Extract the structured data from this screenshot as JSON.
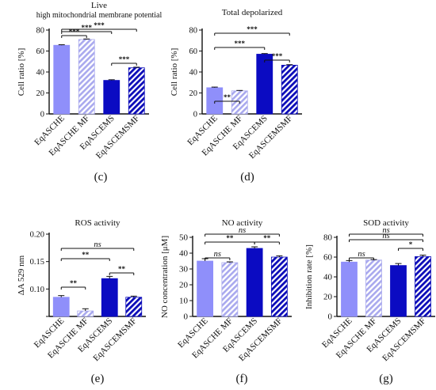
{
  "colors": {
    "light_fill": "#8f8ffa",
    "light_stripe": "#a9a9ee",
    "dark_fill": "#0b0bc2",
    "dark_stripe": "#0b0bb8",
    "axis": "#111111"
  },
  "chart_data": [
    {
      "panel": "(c)",
      "type": "bar",
      "title": "Live",
      "subtitle": "high mitochondrial membrane potential",
      "ylabel": "Cell ratio [%]",
      "ylim": [
        0,
        80
      ],
      "yticks": [
        0,
        20,
        40,
        60,
        80
      ],
      "ytick_labels": [
        "0",
        "20",
        "40",
        "60",
        "80"
      ],
      "categories": [
        "EqASCHE",
        "EqASCHE MF",
        "EqASCEMS",
        "EqASCEMSMF"
      ],
      "values": [
        65.5,
        71,
        32,
        44
      ],
      "errors": [
        0.5,
        0.5,
        0.6,
        0.6
      ],
      "significance": [
        {
          "from": 0,
          "to": 1,
          "label": "***"
        },
        {
          "from": 0,
          "to": 2,
          "label": "***"
        },
        {
          "from": 0,
          "to": 3,
          "label": "***"
        },
        {
          "from": 2,
          "to": 3,
          "label": "***"
        }
      ]
    },
    {
      "panel": "(d)",
      "type": "bar",
      "title": "Total depolarized",
      "subtitle": "",
      "ylabel": "Cell ratio [%]",
      "ylim": [
        0,
        80
      ],
      "yticks": [
        0,
        20,
        40,
        60,
        80
      ],
      "ytick_labels": [
        "0",
        "20",
        "40",
        "60",
        "80"
      ],
      "categories": [
        "EqASCHE",
        "EqASCHE MF",
        "EqASCEMS",
        "EqASCEMSMF"
      ],
      "values": [
        25,
        22,
        57,
        46.5
      ],
      "errors": [
        0.6,
        0.4,
        0.6,
        0.5
      ],
      "significance": [
        {
          "from": 0,
          "to": 1,
          "label": "**"
        },
        {
          "from": 2,
          "to": 3,
          "label": "***"
        },
        {
          "from": 0,
          "to": 2,
          "label": "***"
        },
        {
          "from": 0,
          "to": 3,
          "label": "***"
        }
      ]
    },
    {
      "panel": "(e)",
      "type": "bar",
      "title": "ROS activity",
      "subtitle": "",
      "ylabel": "ΔA 529 nm",
      "ylim": [
        0.05,
        0.2
      ],
      "yticks": [
        0.05,
        0.1,
        0.15,
        0.2
      ],
      "ytick_labels": [
        "",
        "0.10",
        "0.15",
        "0.20"
      ],
      "categories": [
        "EqASCHE",
        "EqASCHE MF",
        "EqASCEMS",
        "EqASCEMSMF"
      ],
      "values": [
        0.085,
        0.06,
        0.119,
        0.085
      ],
      "errors": [
        0.003,
        0.004,
        0.004,
        0.002
      ],
      "significance": [
        {
          "from": 0,
          "to": 1,
          "label": "**"
        },
        {
          "from": 2,
          "to": 3,
          "label": "**"
        },
        {
          "from": 0,
          "to": 2,
          "label": "**"
        },
        {
          "from": 0,
          "to": 3,
          "label": "ns"
        }
      ]
    },
    {
      "panel": "(f)",
      "type": "bar",
      "title": "NO activity",
      "subtitle": "",
      "ylabel": "NO concentration [μM]",
      "ylim": [
        0,
        50
      ],
      "yticks": [
        0,
        10,
        20,
        30,
        40,
        50
      ],
      "ytick_labels": [
        "0",
        "10",
        "20",
        "30",
        "40",
        "50"
      ],
      "categories": [
        "EqASCHE",
        "EqASCHE MF",
        "EqASCEMS",
        "EqASCEMSMF"
      ],
      "values": [
        35,
        34,
        43,
        37.5
      ],
      "errors": [
        1.5,
        0.5,
        1.0,
        0.8
      ],
      "significance": [
        {
          "from": 0,
          "to": 1,
          "label": "ns"
        },
        {
          "from": 0,
          "to": 2,
          "label": "**"
        },
        {
          "from": 2,
          "to": 3,
          "label": "**"
        },
        {
          "from": 0,
          "to": 3,
          "label": "ns"
        }
      ]
    },
    {
      "panel": "(g)",
      "type": "bar",
      "title": "SOD activity",
      "subtitle": "",
      "ylabel": "Inhibition rate [%]",
      "ylim": [
        0,
        80
      ],
      "yticks": [
        0,
        20,
        40,
        60,
        80
      ],
      "ytick_labels": [
        "0",
        "20",
        "40",
        "60",
        "80"
      ],
      "categories": [
        "EqASCHE",
        "EqASCHE MF",
        "EqASCEMS",
        "EqASCEMSMF"
      ],
      "values": [
        55,
        57,
        51.5,
        60.5
      ],
      "errors": [
        1.5,
        0.5,
        2.0,
        1.5
      ],
      "significance": [
        {
          "from": 0,
          "to": 1,
          "label": "ns"
        },
        {
          "from": 2,
          "to": 3,
          "label": "*"
        },
        {
          "from": 0,
          "to": 3,
          "label": "ns"
        },
        {
          "from": 0,
          "to": 3,
          "label": "ns"
        }
      ]
    }
  ]
}
